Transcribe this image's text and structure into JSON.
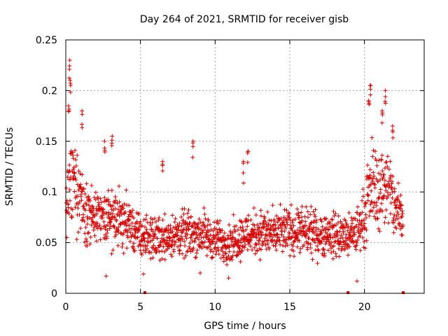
{
  "chart_data": {
    "type": "scatter",
    "title": "Day 264 of 2021, SRMTID for receiver gisb",
    "xlabel": "GPS time / hours",
    "ylabel": "SRMTID / TECUs",
    "xlim": [
      0,
      24.0
    ],
    "ylim": [
      0,
      0.25
    ],
    "xticks": [
      0,
      5,
      10,
      15,
      20
    ],
    "xtick_labels": [
      "0",
      "5",
      "10",
      "15",
      "20"
    ],
    "yticks": [
      0,
      0.05,
      0.1,
      0.15,
      0.2,
      0.25
    ],
    "ytick_labels": [
      "0",
      "0.05",
      "0.1",
      "0.15",
      "0.2",
      "0.25"
    ],
    "grid": true,
    "marker": "+",
    "color": "#d40000",
    "baseline_markers_x": [
      5.3,
      18.9,
      22.6
    ],
    "series": [
      {
        "name": "SRMTID",
        "description": "dense scatter of ~2000 points; representative envelope (hour, typical value)",
        "envelope": [
          [
            0.0,
            0.09
          ],
          [
            0.5,
            0.11
          ],
          [
            1.0,
            0.095
          ],
          [
            1.5,
            0.08
          ],
          [
            2.0,
            0.072
          ],
          [
            3.0,
            0.075
          ],
          [
            4.0,
            0.07
          ],
          [
            5.0,
            0.055
          ],
          [
            6.0,
            0.055
          ],
          [
            7.0,
            0.056
          ],
          [
            8.0,
            0.058
          ],
          [
            9.0,
            0.06
          ],
          [
            10.0,
            0.052
          ],
          [
            11.0,
            0.05
          ],
          [
            12.0,
            0.058
          ],
          [
            13.0,
            0.06
          ],
          [
            14.0,
            0.058
          ],
          [
            15.0,
            0.062
          ],
          [
            16.0,
            0.06
          ],
          [
            17.0,
            0.058
          ],
          [
            18.0,
            0.058
          ],
          [
            19.0,
            0.055
          ],
          [
            19.5,
            0.062
          ],
          [
            20.0,
            0.075
          ],
          [
            20.5,
            0.11
          ],
          [
            21.0,
            0.1
          ],
          [
            21.5,
            0.11
          ],
          [
            22.0,
            0.085
          ],
          [
            22.5,
            0.075
          ]
        ],
        "peaks": [
          [
            0.25,
            0.23
          ],
          [
            0.3,
            0.21
          ],
          [
            0.2,
            0.185
          ],
          [
            1.1,
            0.18
          ],
          [
            2.6,
            0.15
          ],
          [
            3.1,
            0.155
          ],
          [
            6.5,
            0.13
          ],
          [
            8.5,
            0.15
          ],
          [
            11.9,
            0.13
          ],
          [
            12.2,
            0.14
          ],
          [
            20.4,
            0.205
          ],
          [
            20.3,
            0.19
          ],
          [
            21.4,
            0.2
          ],
          [
            21.2,
            0.18
          ],
          [
            21.9,
            0.165
          ]
        ],
        "lows": [
          [
            2.7,
            0.017
          ],
          [
            10.9,
            0.015
          ],
          [
            19.5,
            0.012
          ],
          [
            5.2,
            0.019
          ],
          [
            9.0,
            0.02
          ]
        ]
      }
    ]
  }
}
